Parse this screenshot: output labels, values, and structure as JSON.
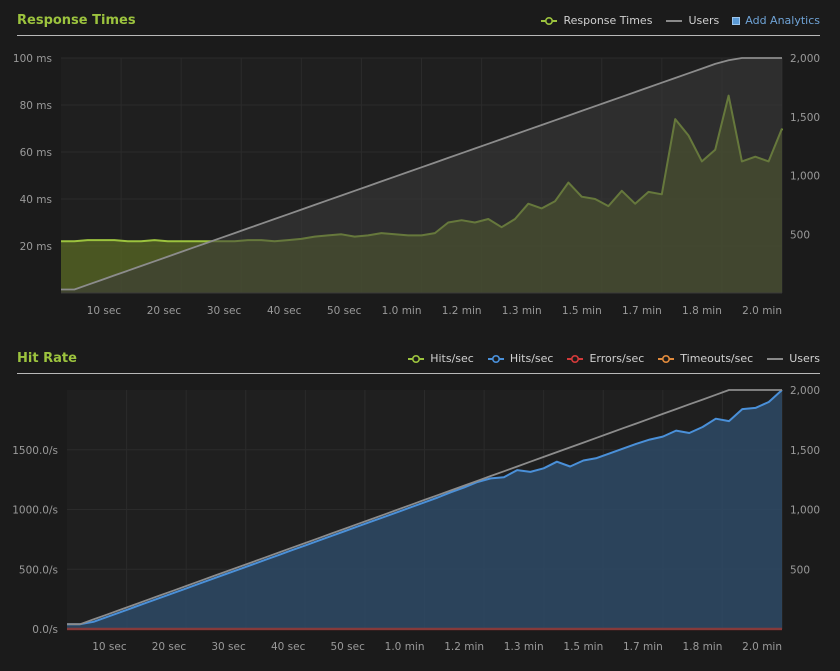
{
  "colors": {
    "green": "#9cc33e",
    "blue": "#4a90d9",
    "red": "#d23a3a",
    "orange": "#e08a3c",
    "gray": "#8a8a8a"
  },
  "icons": [
    "expand-icon",
    "minus-icon",
    "plus-icon"
  ],
  "chart_data": [
    {
      "type": "line",
      "title": "Response Times",
      "legend_placement": "top-right",
      "grid": true,
      "xlim": [
        0,
        2.0
      ],
      "ylim_left": [
        0,
        100
      ],
      "ylim_right": [
        0,
        2000
      ],
      "x_tick_labels": [
        "10 sec",
        "20 sec",
        "30 sec",
        "40 sec",
        "50 sec",
        "1.0 min",
        "1.2 min",
        "1.3 min",
        "1.5 min",
        "1.7 min",
        "1.8 min",
        "2.0 min"
      ],
      "left_tick_labels": [
        "20 ms",
        "40 ms",
        "60 ms",
        "80 ms",
        "100 ms"
      ],
      "right_tick_labels": [
        "500",
        "1,000",
        "1,500",
        "2,000"
      ],
      "add_analytics_label": "Add Analytics",
      "series": [
        {
          "name": "Response Times",
          "axis": "left",
          "color": "#9cc33e",
          "style": "area-line-marker",
          "values": [
            22,
            22,
            22.5,
            22.5,
            22.5,
            22,
            22,
            22.5,
            22,
            22,
            22,
            22,
            22,
            22,
            22.5,
            22.5,
            22,
            22.5,
            23,
            24,
            24.5,
            25,
            24,
            24.5,
            25.5,
            25,
            24.5,
            24.5,
            25.5,
            30,
            31,
            30,
            31.5,
            28,
            31.5,
            38,
            36,
            39,
            47,
            41,
            40,
            37,
            43.5,
            38,
            43,
            42,
            74,
            67,
            56,
            61,
            84,
            56,
            58,
            56,
            70
          ]
        },
        {
          "name": "Users",
          "axis": "right",
          "color": "#8a8a8a",
          "style": "area-line",
          "values": [
            30,
            30,
            70,
            110,
            150,
            190,
            230,
            270,
            310,
            350,
            390,
            430,
            470,
            510,
            550,
            590,
            630,
            670,
            710,
            750,
            790,
            830,
            870,
            910,
            950,
            990,
            1030,
            1070,
            1110,
            1150,
            1190,
            1230,
            1270,
            1310,
            1350,
            1390,
            1430,
            1470,
            1510,
            1550,
            1590,
            1630,
            1670,
            1710,
            1750,
            1790,
            1830,
            1870,
            1910,
            1950,
            1980,
            2000,
            2000,
            2000,
            2000
          ]
        }
      ]
    },
    {
      "type": "line",
      "title": "Hit Rate",
      "legend_placement": "top-right",
      "grid": true,
      "xlim": [
        0,
        2.0
      ],
      "ylim_left": [
        0,
        2000
      ],
      "ylim_right": [
        0,
        2000
      ],
      "x_tick_labels": [
        "10 sec",
        "20 sec",
        "30 sec",
        "40 sec",
        "50 sec",
        "1.0 min",
        "1.2 min",
        "1.3 min",
        "1.5 min",
        "1.7 min",
        "1.8 min",
        "2.0 min"
      ],
      "left_tick_labels": [
        "0.0/s",
        "500.0/s",
        "1000.0/s",
        "1500.0/s"
      ],
      "right_tick_labels": [
        "500",
        "1,000",
        "1,500",
        "2,000"
      ],
      "series": [
        {
          "name": "Hits/sec",
          "axis": "left",
          "color": "#9cc33e",
          "style": "legend-only",
          "values": []
        },
        {
          "name": "Hits/sec",
          "axis": "left",
          "color": "#4a90d9",
          "style": "area-line",
          "values": [
            40,
            40,
            60,
            100,
            140,
            180,
            220,
            260,
            300,
            340,
            380,
            420,
            460,
            500,
            540,
            580,
            620,
            660,
            700,
            740,
            780,
            820,
            860,
            900,
            940,
            980,
            1020,
            1060,
            1100,
            1145,
            1185,
            1230,
            1260,
            1270,
            1330,
            1315,
            1345,
            1400,
            1360,
            1410,
            1430,
            1470,
            1510,
            1550,
            1585,
            1610,
            1660,
            1640,
            1690,
            1760,
            1740,
            1840,
            1850,
            1900,
            2000
          ]
        },
        {
          "name": "Errors/sec",
          "axis": "left",
          "color": "#d23a3a",
          "style": "line",
          "values": [
            0,
            0
          ]
        },
        {
          "name": "Timeouts/sec",
          "axis": "left",
          "color": "#e08a3c",
          "style": "legend-only",
          "values": []
        },
        {
          "name": "Users",
          "axis": "right",
          "color": "#8a8a8a",
          "style": "line",
          "values": [
            40,
            40,
            80,
            120,
            160,
            200,
            240,
            280,
            320,
            360,
            400,
            440,
            480,
            520,
            560,
            600,
            640,
            680,
            720,
            760,
            800,
            840,
            880,
            920,
            960,
            1000,
            1040,
            1080,
            1120,
            1160,
            1200,
            1240,
            1280,
            1320,
            1360,
            1400,
            1440,
            1480,
            1520,
            1560,
            1600,
            1640,
            1680,
            1720,
            1760,
            1800,
            1840,
            1880,
            1920,
            1960,
            2000,
            2000,
            2000,
            2000,
            2000
          ]
        }
      ]
    }
  ]
}
